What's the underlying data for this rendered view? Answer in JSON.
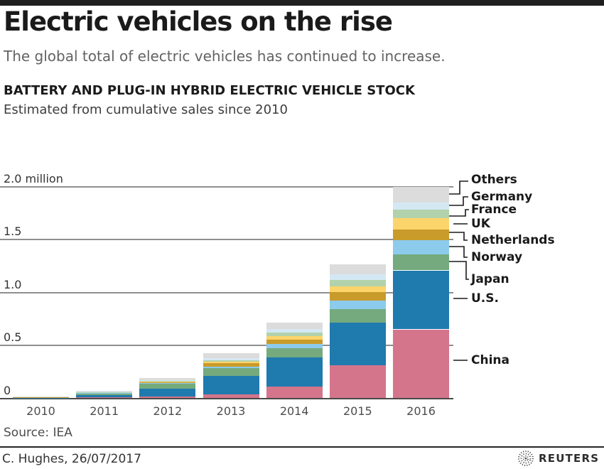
{
  "header": {
    "title": "Electric vehicles on the rise",
    "subtitle": "The global total of electric vehicles has continued to increase."
  },
  "section": {
    "heading": "BATTERY AND PLUG-IN HYBRID ELECTRIC VEHICLE STOCK",
    "subheading": "Estimated from cumulative sales since 2010"
  },
  "chart_data": {
    "type": "bar",
    "stacked": true,
    "title": "BATTERY AND PLUG-IN HYBRID ELECTRIC VEHICLE STOCK",
    "subtitle": "Estimated from cumulative sales since 2010",
    "unit": "million vehicles",
    "categories": [
      "2010",
      "2011",
      "2012",
      "2013",
      "2014",
      "2015",
      "2016"
    ],
    "series": [
      {
        "name": "China",
        "color": "#d4758b",
        "values": [
          0.001,
          0.007,
          0.018,
          0.034,
          0.114,
          0.315,
          0.651
        ]
      },
      {
        "name": "U.S.",
        "color": "#1f7aae",
        "values": [
          0.004,
          0.025,
          0.075,
          0.18,
          0.275,
          0.403,
          0.557
        ]
      },
      {
        "name": "Japan",
        "color": "#74aa7e",
        "values": [
          0.006,
          0.018,
          0.042,
          0.068,
          0.087,
          0.121,
          0.154
        ]
      },
      {
        "name": "Norway",
        "color": "#8ccbec",
        "values": [
          0.001,
          0.003,
          0.01,
          0.02,
          0.04,
          0.081,
          0.134
        ]
      },
      {
        "name": "Netherlands",
        "color": "#c99b2b",
        "values": [
          0.001,
          0.001,
          0.006,
          0.028,
          0.04,
          0.081,
          0.101
        ]
      },
      {
        "name": "UK",
        "color": "#fbd46b",
        "values": [
          0.001,
          0.002,
          0.006,
          0.018,
          0.034,
          0.054,
          0.101
        ]
      },
      {
        "name": "France",
        "color": "#b2d2ab",
        "values": [
          0.001,
          0.003,
          0.007,
          0.014,
          0.034,
          0.06,
          0.081
        ]
      },
      {
        "name": "Germany",
        "color": "#d4e8f4",
        "values": [
          0.001,
          0.002,
          0.005,
          0.02,
          0.03,
          0.054,
          0.067
        ]
      },
      {
        "name": "Others",
        "color": "#dcdcdc",
        "values": [
          0.002,
          0.011,
          0.022,
          0.046,
          0.064,
          0.094,
          0.154
        ]
      }
    ],
    "y_ticks": [
      {
        "label": "2.0 million",
        "value": 2.0
      },
      {
        "label": "1.5",
        "value": 1.5
      },
      {
        "label": "1.0",
        "value": 1.0
      },
      {
        "label": "0.5",
        "value": 0.5
      },
      {
        "label": "0",
        "value": 0.0
      }
    ],
    "ylim": [
      0,
      2.0
    ],
    "grid": true,
    "legend_position": "right",
    "legend_order": [
      "Others",
      "Germany",
      "France",
      "UK",
      "Netherlands",
      "Norway",
      "Japan",
      "U.S.",
      "China"
    ]
  },
  "footer": {
    "source": "Source: IEA",
    "credit": "C. Hughes,  26/07/2017",
    "brand": "REUTERS",
    "brand_icon": "reuters-orbital-dots-logo"
  },
  "colors": {
    "topbar": "#1f1f1f",
    "gridline": "#8f8f8f",
    "baseline": "#4a4a4a",
    "subtitle_text": "#636363"
  }
}
